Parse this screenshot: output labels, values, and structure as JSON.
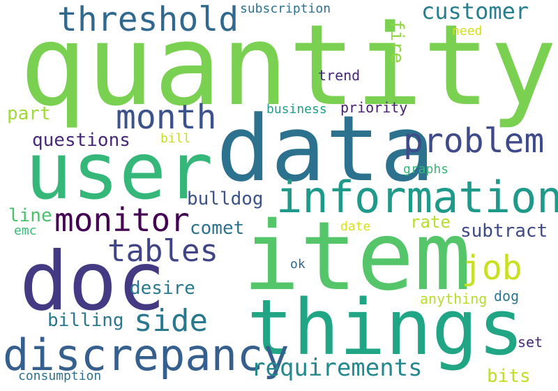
{
  "words": [
    {
      "id": "quantity",
      "text": "quantity",
      "color": "#7ad151"
    },
    {
      "id": "data",
      "text": "data",
      "color": "#2c728e"
    },
    {
      "id": "item",
      "text": "item",
      "color": "#54c568"
    },
    {
      "id": "user",
      "text": "user",
      "color": "#35b779"
    },
    {
      "id": "things",
      "text": "things",
      "color": "#21a685"
    },
    {
      "id": "doc",
      "text": "doc",
      "color": "#443a83"
    },
    {
      "id": "information",
      "text": "information",
      "color": "#1f9a8a"
    },
    {
      "id": "discrepancy",
      "text": "discrepancy",
      "color": "#355f8d"
    },
    {
      "id": "problem",
      "text": "problem",
      "color": "#3e4a89"
    },
    {
      "id": "threshold",
      "text": "threshold",
      "color": "#31688e"
    },
    {
      "id": "month",
      "text": "month",
      "color": "#3b528b"
    },
    {
      "id": "monitor",
      "text": "monitor",
      "color": "#440154"
    },
    {
      "id": "tables",
      "text": "tables",
      "color": "#414487"
    },
    {
      "id": "side",
      "text": "side",
      "color": "#2a788e"
    },
    {
      "id": "job",
      "text": "job",
      "color": "#c8e020"
    },
    {
      "id": "requirements",
      "text": "requirements",
      "color": "#23898e"
    },
    {
      "id": "customer",
      "text": "customer",
      "color": "#277f8e"
    },
    {
      "id": "questions",
      "text": "questions",
      "color": "#482878"
    },
    {
      "id": "bulldog",
      "text": "bulldog",
      "color": "#3b528b"
    },
    {
      "id": "comet",
      "text": "comet",
      "color": "#2c728e"
    },
    {
      "id": "subtract",
      "text": "subtract",
      "color": "#3e4989"
    },
    {
      "id": "desire",
      "text": "desire",
      "color": "#2a788e"
    },
    {
      "id": "billing",
      "text": "billing",
      "color": "#2a788e"
    },
    {
      "id": "part",
      "text": "part",
      "color": "#a0da39"
    },
    {
      "id": "line",
      "text": "line",
      "color": "#4ac16d"
    },
    {
      "id": "bits",
      "text": "bits",
      "color": "#bddf26"
    },
    {
      "id": "fire",
      "text": "fire",
      "color": "#90d743"
    },
    {
      "id": "rate",
      "text": "rate",
      "color": "#b5de2b"
    },
    {
      "id": "subscription",
      "text": "subscription",
      "color": "#2c728e"
    },
    {
      "id": "need",
      "text": "need",
      "color": "#d0e11c"
    },
    {
      "id": "trend",
      "text": "trend",
      "color": "#482878"
    },
    {
      "id": "business",
      "text": "business",
      "color": "#1f9e89"
    },
    {
      "id": "priority",
      "text": "priority",
      "color": "#481f70"
    },
    {
      "id": "bill",
      "text": "bill",
      "color": "#c2df23"
    },
    {
      "id": "graphs",
      "text": "graphs",
      "color": "#35b779"
    },
    {
      "id": "emc",
      "text": "emc",
      "color": "#3bbb75"
    },
    {
      "id": "date",
      "text": "date",
      "color": "#d8e219"
    },
    {
      "id": "ok",
      "text": "ok",
      "color": "#31688e"
    },
    {
      "id": "anything",
      "text": "anything",
      "color": "#b5de2b"
    },
    {
      "id": "dog",
      "text": "dog",
      "color": "#2a788e"
    },
    {
      "id": "set",
      "text": "set",
      "color": "#482878"
    },
    {
      "id": "consumption",
      "text": "consumption",
      "color": "#2c728e"
    }
  ]
}
